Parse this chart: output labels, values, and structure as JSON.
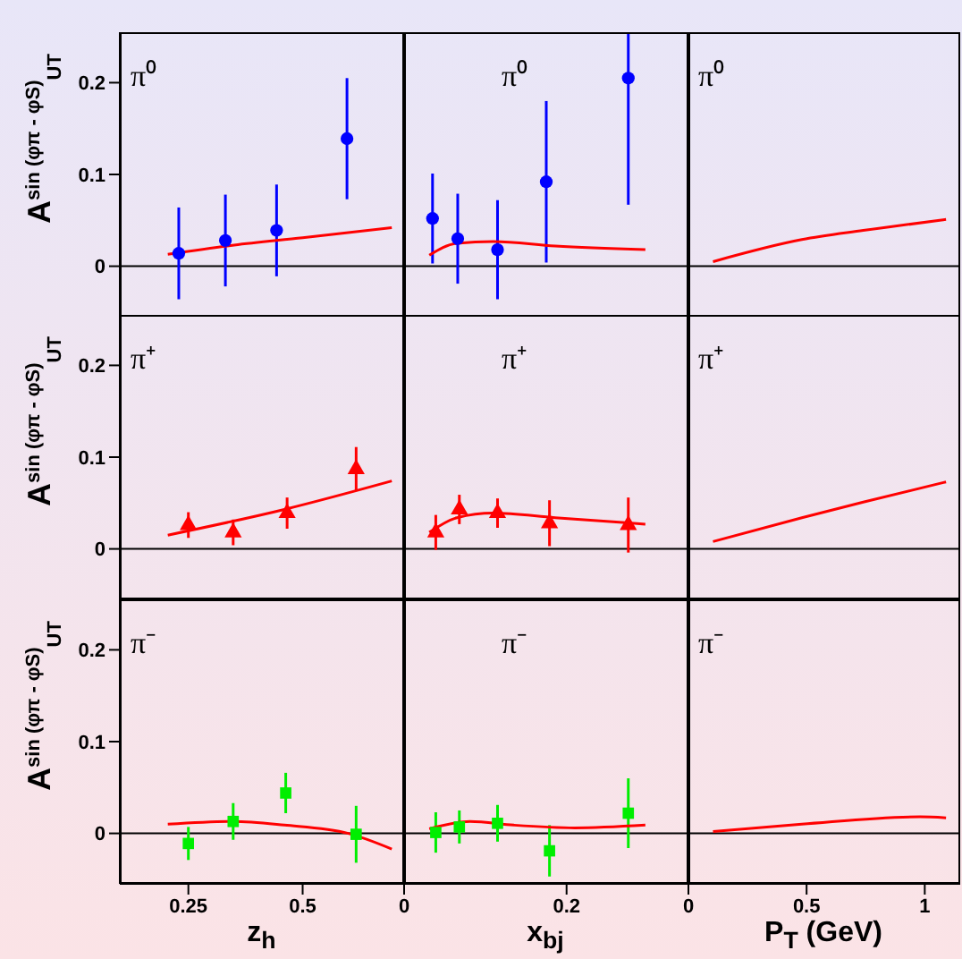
{
  "chart_data": [
    {
      "type": "scatter",
      "ylabel": "A$^{sin (φπ - φS)}$$_{UT}$",
      "annotations": [
        "π⁰"
      ],
      "xlim": [
        0.1,
        0.72
      ],
      "xticks": [
        0.25,
        0.5
      ],
      "ylim": [
        -0.055,
        0.255
      ],
      "yticks": [
        0,
        0.1,
        0.2
      ],
      "tick_labels": "y",
      "ref_lines": [
        {
          "axis": "y",
          "value": 0,
          "color": "#000000"
        }
      ],
      "series": [
        {
          "color": "#0000ff",
          "marker": "circle",
          "x": [
            0.229,
            0.331,
            0.443,
            0.597
          ],
          "values": [
            0.014,
            0.028,
            0.039,
            0.139
          ],
          "errors": [
            0.05,
            0.05,
            0.05,
            0.066
          ]
        },
        {
          "type": "line",
          "color": "#ff0000",
          "marker": "none",
          "x": [
            0.205,
            0.35,
            0.5,
            0.695
          ],
          "values": [
            0.013,
            0.023,
            0.031,
            0.042
          ]
        }
      ]
    },
    {
      "type": "scatter",
      "annotations": [
        "π⁰"
      ],
      "xlim": [
        0,
        0.35
      ],
      "xticks": [
        0,
        0.2
      ],
      "ylim": [
        -0.055,
        0.255
      ],
      "yticks": [
        0,
        0.1,
        0.2
      ],
      "tick_labels": false,
      "ref_lines": [
        {
          "axis": "y",
          "value": 0,
          "color": "#000000"
        }
      ],
      "series": [
        {
          "color": "#0000ff",
          "marker": "circle",
          "x": [
            0.035,
            0.066,
            0.115,
            0.175,
            0.276
          ],
          "values": [
            0.052,
            0.03,
            0.018,
            0.092,
            0.205
          ],
          "errors": [
            0.049,
            0.049,
            0.054,
            0.088,
            [
              0.067,
              0.255
            ]
          ]
        },
        {
          "type": "line",
          "color": "#ff0000",
          "marker": "none",
          "x": [
            0.031,
            0.065,
            0.11,
            0.186,
            0.297
          ],
          "values": [
            0.012,
            0.025,
            0.027,
            0.022,
            0.018
          ]
        }
      ]
    },
    {
      "type": "line",
      "annotations": [
        "π⁰"
      ],
      "xlim": [
        0,
        1.15
      ],
      "xticks": [
        0,
        0.5,
        1
      ],
      "ylim": [
        -0.055,
        0.255
      ],
      "yticks": [
        0,
        0.1,
        0.2
      ],
      "tick_labels": false,
      "ref_lines": [
        {
          "axis": "y",
          "value": 0,
          "color": "#000000"
        }
      ],
      "series": [
        {
          "color": "#ff0000",
          "marker": "none",
          "x": [
            0.104,
            0.48,
            0.74,
            1.09
          ],
          "values": [
            0.005,
            0.029,
            0.039,
            0.051
          ]
        }
      ]
    },
    {
      "type": "scatter",
      "ylabel": "A$^{sin (φπ - φS)}$$_{UT}$",
      "annotations": [
        "π⁺"
      ],
      "xlim": [
        0.1,
        0.72
      ],
      "xticks": [
        0.25,
        0.5
      ],
      "ylim": [
        -0.055,
        0.255
      ],
      "yticks": [
        0,
        0.1,
        0.2
      ],
      "tick_labels": "y",
      "ref_lines": [
        {
          "axis": "y",
          "value": 0,
          "color": "#000000"
        }
      ],
      "series": [
        {
          "color": "#ff0000",
          "marker": "triangle",
          "x": [
            0.25,
            0.348,
            0.466,
            0.617
          ],
          "values": [
            0.026,
            0.018,
            0.039,
            0.087
          ],
          "errors": [
            0.014,
            0.014,
            0.017,
            0.024
          ]
        },
        {
          "type": "line",
          "color": "#ff0000",
          "marker": "none",
          "x": [
            0.205,
            0.46,
            0.695
          ],
          "values": [
            0.015,
            0.043,
            0.074
          ]
        }
      ]
    },
    {
      "type": "scatter",
      "annotations": [
        "π⁺"
      ],
      "xlim": [
        0,
        0.35
      ],
      "xticks": [
        0,
        0.2
      ],
      "ylim": [
        -0.055,
        0.255
      ],
      "yticks": [
        0,
        0.1,
        0.2
      ],
      "tick_labels": false,
      "ref_lines": [
        {
          "axis": "y",
          "value": 0,
          "color": "#000000"
        }
      ],
      "series": [
        {
          "color": "#ff0000",
          "marker": "triangle",
          "x": [
            0.039,
            0.068,
            0.115,
            0.179,
            0.276
          ],
          "values": [
            0.018,
            0.043,
            0.039,
            0.028,
            0.026
          ],
          "errors": [
            0.019,
            0.016,
            0.016,
            0.025,
            0.03
          ]
        },
        {
          "type": "line",
          "color": "#ff0000",
          "marker": "none",
          "x": [
            0.031,
            0.065,
            0.11,
            0.186,
            0.297
          ],
          "values": [
            0.018,
            0.034,
            0.039,
            0.034,
            0.027
          ]
        }
      ]
    },
    {
      "type": "line",
      "annotations": [
        "π⁺"
      ],
      "xlim": [
        0,
        1.15
      ],
      "xticks": [
        0,
        0.5,
        1
      ],
      "ylim": [
        -0.055,
        0.255
      ],
      "yticks": [
        0,
        0.1,
        0.2
      ],
      "tick_labels": false,
      "ref_lines": [
        {
          "axis": "y",
          "value": 0,
          "color": "#000000"
        }
      ],
      "series": [
        {
          "color": "#ff0000",
          "marker": "none",
          "x": [
            0.104,
            0.48,
            0.74,
            1.09
          ],
          "values": [
            0.008,
            0.034,
            0.051,
            0.073
          ]
        }
      ]
    },
    {
      "type": "scatter",
      "ylabel": "A$^{sin (φπ - φS)}$$_{UT}$",
      "xlabel": "z$_{h}$",
      "annotations": [
        "π⁻"
      ],
      "xlim": [
        0.1,
        0.72
      ],
      "xticks": [
        0.25,
        0.5
      ],
      "ylim": [
        -0.055,
        0.255
      ],
      "yticks": [
        0,
        0.1,
        0.2
      ],
      "ref_lines": [
        {
          "axis": "y",
          "value": 0,
          "color": "#000000"
        }
      ],
      "series": [
        {
          "color": "#00ee00",
          "marker": "square",
          "x": [
            0.25,
            0.348,
            0.463,
            0.617
          ],
          "values": [
            -0.011,
            0.013,
            0.044,
            -0.001
          ],
          "errors": [
            0.018,
            0.02,
            0.022,
            0.031
          ]
        },
        {
          "type": "line",
          "color": "#ff0000",
          "marker": "none",
          "x": [
            0.205,
            0.348,
            0.46,
            0.6,
            0.695
          ],
          "values": [
            0.01,
            0.013,
            0.009,
            0.0,
            -0.017
          ]
        }
      ]
    },
    {
      "type": "scatter",
      "xlabel": "x$_{bj}$",
      "annotations": [
        "π⁻"
      ],
      "xlim": [
        0,
        0.35
      ],
      "xticks": [
        0,
        0.2
      ],
      "ylim": [
        -0.055,
        0.255
      ],
      "yticks": [
        0,
        0.1,
        0.2
      ],
      "tick_labels": "x",
      "ref_lines": [
        {
          "axis": "y",
          "value": 0,
          "color": "#000000"
        }
      ],
      "series": [
        {
          "color": "#00ee00",
          "marker": "square",
          "x": [
            0.039,
            0.068,
            0.115,
            0.179,
            0.276
          ],
          "values": [
            0.001,
            0.007,
            0.011,
            -0.019,
            0.022
          ],
          "errors": [
            0.022,
            0.018,
            0.02,
            0.028,
            0.038
          ]
        },
        {
          "type": "line",
          "color": "#ff0000",
          "marker": "none",
          "x": [
            0.031,
            0.081,
            0.135,
            0.21,
            0.297
          ],
          "values": [
            0.005,
            0.013,
            0.009,
            0.006,
            0.009
          ]
        }
      ]
    },
    {
      "type": "line",
      "xlabel": "P$_{T}$ (GeV)",
      "annotations": [
        "π⁻"
      ],
      "xlim": [
        0,
        1.15
      ],
      "xticks": [
        0,
        0.5,
        1
      ],
      "ylim": [
        -0.055,
        0.255
      ],
      "yticks": [
        0,
        0.1,
        0.2
      ],
      "tick_labels": "x",
      "ref_lines": [
        {
          "axis": "y",
          "value": 0,
          "color": "#000000"
        }
      ],
      "series": [
        {
          "color": "#ff0000",
          "marker": "none",
          "x": [
            0.104,
            0.48,
            0.98,
            1.09
          ],
          "values": [
            0.002,
            0.01,
            0.018,
            0.017
          ]
        }
      ]
    }
  ]
}
